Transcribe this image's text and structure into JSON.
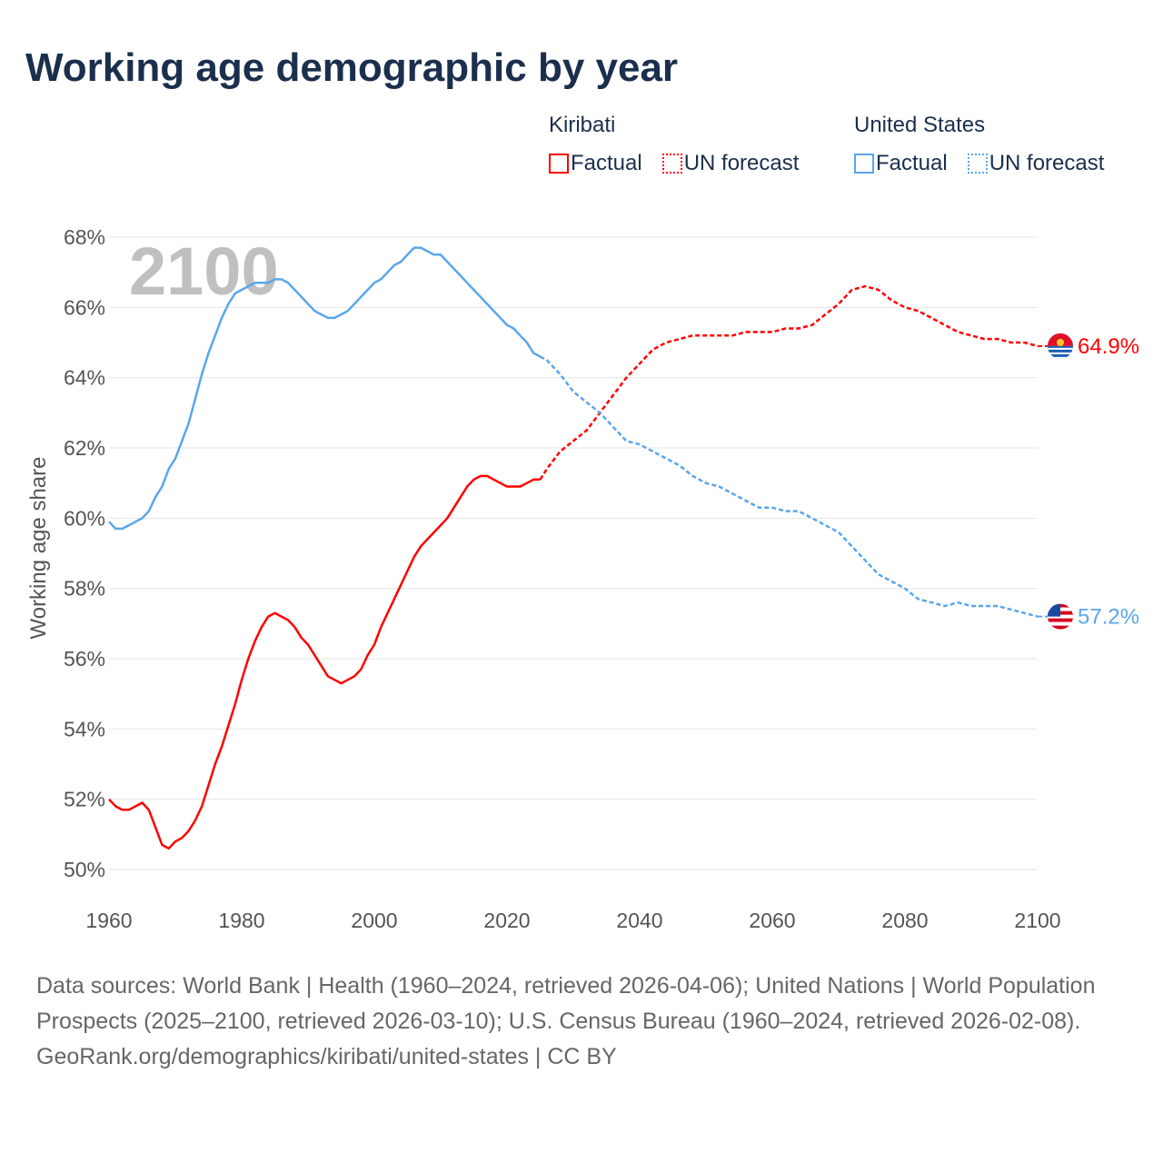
{
  "title": "Working age demographic by year",
  "legend": {
    "groups": [
      {
        "country": "Kiribati",
        "color": "#ff0000",
        "factual": "Factual",
        "forecast": "UN forecast"
      },
      {
        "country": "United States",
        "color": "#5aa6ec",
        "factual": "Factual",
        "forecast": "UN forecast"
      }
    ]
  },
  "year_watermark": "2100",
  "footer": {
    "sources": "Data sources: World Bank | Health (1960–2024, retrieved 2026-04-06); United Nations | World Population Prospects (2025–2100, retrieved 2026-03-10); U.S. Census Bureau (1960–2024, retrieved 2026-02-08).",
    "link": "GeoRank.org/demographics/kiribati/united-states | CC BY"
  },
  "chart_data": {
    "type": "line",
    "title": "Working age demographic by year",
    "xlabel": "",
    "ylabel": "Working age share",
    "xlim": [
      1960,
      2100
    ],
    "ylim": [
      50,
      68
    ],
    "x_ticks": [
      "1960",
      "1980",
      "2000",
      "2020",
      "2040",
      "2060",
      "2080",
      "2100"
    ],
    "y_ticks": [
      "50%",
      "52%",
      "54%",
      "56%",
      "58%",
      "60%",
      "62%",
      "64%",
      "66%",
      "68%"
    ],
    "grid": true,
    "series": [
      {
        "name": "Kiribati",
        "color": "#ff0000",
        "end_label": "64.9%",
        "flag": "kiribati-flag",
        "factual": [
          [
            1960,
            52.0
          ],
          [
            1961,
            51.8
          ],
          [
            1962,
            51.7
          ],
          [
            1963,
            51.7
          ],
          [
            1964,
            51.8
          ],
          [
            1965,
            51.9
          ],
          [
            1966,
            51.7
          ],
          [
            1967,
            51.2
          ],
          [
            1968,
            50.7
          ],
          [
            1969,
            50.6
          ],
          [
            1970,
            50.8
          ],
          [
            1971,
            50.9
          ],
          [
            1972,
            51.1
          ],
          [
            1973,
            51.4
          ],
          [
            1974,
            51.8
          ],
          [
            1975,
            52.4
          ],
          [
            1976,
            53.0
          ],
          [
            1977,
            53.5
          ],
          [
            1978,
            54.1
          ],
          [
            1979,
            54.7
          ],
          [
            1980,
            55.4
          ],
          [
            1981,
            56.0
          ],
          [
            1982,
            56.5
          ],
          [
            1983,
            56.9
          ],
          [
            1984,
            57.2
          ],
          [
            1985,
            57.3
          ],
          [
            1986,
            57.2
          ],
          [
            1987,
            57.1
          ],
          [
            1988,
            56.9
          ],
          [
            1989,
            56.6
          ],
          [
            1990,
            56.4
          ],
          [
            1991,
            56.1
          ],
          [
            1992,
            55.8
          ],
          [
            1993,
            55.5
          ],
          [
            1994,
            55.4
          ],
          [
            1995,
            55.3
          ],
          [
            1996,
            55.4
          ],
          [
            1997,
            55.5
          ],
          [
            1998,
            55.7
          ],
          [
            1999,
            56.1
          ],
          [
            2000,
            56.4
          ],
          [
            2001,
            56.9
          ],
          [
            2002,
            57.3
          ],
          [
            2003,
            57.7
          ],
          [
            2004,
            58.1
          ],
          [
            2005,
            58.5
          ],
          [
            2006,
            58.9
          ],
          [
            2007,
            59.2
          ],
          [
            2008,
            59.4
          ],
          [
            2009,
            59.6
          ],
          [
            2010,
            59.8
          ],
          [
            2011,
            60.0
          ],
          [
            2012,
            60.3
          ],
          [
            2013,
            60.6
          ],
          [
            2014,
            60.9
          ],
          [
            2015,
            61.1
          ],
          [
            2016,
            61.2
          ],
          [
            2017,
            61.2
          ],
          [
            2018,
            61.1
          ],
          [
            2019,
            61.0
          ],
          [
            2020,
            60.9
          ],
          [
            2021,
            60.9
          ],
          [
            2022,
            60.9
          ],
          [
            2023,
            61.0
          ],
          [
            2024,
            61.1
          ],
          [
            2025,
            61.1
          ]
        ],
        "forecast": [
          [
            2025,
            61.1
          ],
          [
            2026,
            61.4
          ],
          [
            2028,
            61.9
          ],
          [
            2030,
            62.2
          ],
          [
            2032,
            62.5
          ],
          [
            2034,
            63.0
          ],
          [
            2036,
            63.5
          ],
          [
            2038,
            64.0
          ],
          [
            2040,
            64.4
          ],
          [
            2042,
            64.8
          ],
          [
            2044,
            65.0
          ],
          [
            2046,
            65.1
          ],
          [
            2048,
            65.2
          ],
          [
            2050,
            65.2
          ],
          [
            2054,
            65.2
          ],
          [
            2056,
            65.3
          ],
          [
            2060,
            65.3
          ],
          [
            2062,
            65.4
          ],
          [
            2064,
            65.4
          ],
          [
            2066,
            65.5
          ],
          [
            2068,
            65.8
          ],
          [
            2070,
            66.1
          ],
          [
            2072,
            66.5
          ],
          [
            2074,
            66.6
          ],
          [
            2076,
            66.5
          ],
          [
            2078,
            66.2
          ],
          [
            2080,
            66.0
          ],
          [
            2082,
            65.9
          ],
          [
            2084,
            65.7
          ],
          [
            2086,
            65.5
          ],
          [
            2088,
            65.3
          ],
          [
            2090,
            65.2
          ],
          [
            2092,
            65.1
          ],
          [
            2094,
            65.1
          ],
          [
            2096,
            65.0
          ],
          [
            2098,
            65.0
          ],
          [
            2100,
            64.9
          ]
        ]
      },
      {
        "name": "United States",
        "color": "#5aa6ec",
        "end_label": "57.2%",
        "flag": "united-states-flag",
        "factual": [
          [
            1960,
            59.9
          ],
          [
            1961,
            59.7
          ],
          [
            1962,
            59.7
          ],
          [
            1963,
            59.8
          ],
          [
            1964,
            59.9
          ],
          [
            1965,
            60.0
          ],
          [
            1966,
            60.2
          ],
          [
            1967,
            60.6
          ],
          [
            1968,
            60.9
          ],
          [
            1969,
            61.4
          ],
          [
            1970,
            61.7
          ],
          [
            1971,
            62.2
          ],
          [
            1972,
            62.7
          ],
          [
            1973,
            63.4
          ],
          [
            1974,
            64.1
          ],
          [
            1975,
            64.7
          ],
          [
            1976,
            65.2
          ],
          [
            1977,
            65.7
          ],
          [
            1978,
            66.1
          ],
          [
            1979,
            66.4
          ],
          [
            1980,
            66.5
          ],
          [
            1981,
            66.6
          ],
          [
            1982,
            66.7
          ],
          [
            1983,
            66.7
          ],
          [
            1984,
            66.7
          ],
          [
            1985,
            66.8
          ],
          [
            1986,
            66.8
          ],
          [
            1987,
            66.7
          ],
          [
            1988,
            66.5
          ],
          [
            1989,
            66.3
          ],
          [
            1990,
            66.1
          ],
          [
            1991,
            65.9
          ],
          [
            1992,
            65.8
          ],
          [
            1993,
            65.7
          ],
          [
            1994,
            65.7
          ],
          [
            1995,
            65.8
          ],
          [
            1996,
            65.9
          ],
          [
            1997,
            66.1
          ],
          [
            1998,
            66.3
          ],
          [
            1999,
            66.5
          ],
          [
            2000,
            66.7
          ],
          [
            2001,
            66.8
          ],
          [
            2002,
            67.0
          ],
          [
            2003,
            67.2
          ],
          [
            2004,
            67.3
          ],
          [
            2005,
            67.5
          ],
          [
            2006,
            67.7
          ],
          [
            2007,
            67.7
          ],
          [
            2008,
            67.6
          ],
          [
            2009,
            67.5
          ],
          [
            2010,
            67.5
          ],
          [
            2011,
            67.3
          ],
          [
            2012,
            67.1
          ],
          [
            2013,
            66.9
          ],
          [
            2014,
            66.7
          ],
          [
            2015,
            66.5
          ],
          [
            2016,
            66.3
          ],
          [
            2017,
            66.1
          ],
          [
            2018,
            65.9
          ],
          [
            2019,
            65.7
          ],
          [
            2020,
            65.5
          ],
          [
            2021,
            65.4
          ],
          [
            2022,
            65.2
          ],
          [
            2023,
            65.0
          ],
          [
            2024,
            64.7
          ],
          [
            2025,
            64.6
          ]
        ],
        "forecast": [
          [
            2025,
            64.6
          ],
          [
            2026,
            64.5
          ],
          [
            2028,
            64.1
          ],
          [
            2030,
            63.6
          ],
          [
            2032,
            63.3
          ],
          [
            2034,
            63.0
          ],
          [
            2036,
            62.6
          ],
          [
            2038,
            62.2
          ],
          [
            2040,
            62.1
          ],
          [
            2042,
            61.9
          ],
          [
            2044,
            61.7
          ],
          [
            2046,
            61.5
          ],
          [
            2048,
            61.2
          ],
          [
            2050,
            61.0
          ],
          [
            2052,
            60.9
          ],
          [
            2054,
            60.7
          ],
          [
            2056,
            60.5
          ],
          [
            2058,
            60.3
          ],
          [
            2060,
            60.3
          ],
          [
            2062,
            60.2
          ],
          [
            2064,
            60.2
          ],
          [
            2066,
            60.0
          ],
          [
            2068,
            59.8
          ],
          [
            2070,
            59.6
          ],
          [
            2072,
            59.2
          ],
          [
            2074,
            58.8
          ],
          [
            2076,
            58.4
          ],
          [
            2078,
            58.2
          ],
          [
            2080,
            58.0
          ],
          [
            2082,
            57.7
          ],
          [
            2084,
            57.6
          ],
          [
            2086,
            57.5
          ],
          [
            2088,
            57.6
          ],
          [
            2090,
            57.5
          ],
          [
            2094,
            57.5
          ],
          [
            2096,
            57.4
          ],
          [
            2098,
            57.3
          ],
          [
            2100,
            57.2
          ]
        ]
      }
    ]
  }
}
